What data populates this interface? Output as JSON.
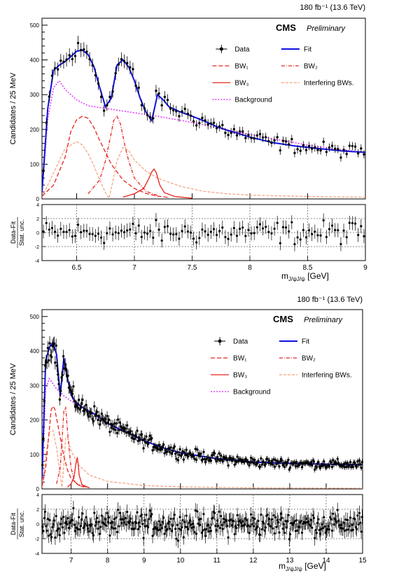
{
  "chart_data": [
    {
      "type": "line",
      "lumi_label": "180 fb⁻¹ (13.6 TeV)",
      "experiment": "CMS",
      "status": "Preliminary",
      "ylabel": "Candidates / 25 MeV",
      "xlabel": "m",
      "xlabel_sub": "J/ψJ/ψ",
      "xlabel_unit": " [GeV]",
      "ratio_ylabel_top": "Data-Fit",
      "ratio_ylabel_bottom": "Stat. unc.",
      "xlim": [
        6.2,
        9.0
      ],
      "ylim": [
        0,
        520
      ],
      "ratio_ylim": [
        -4,
        4
      ],
      "x_ticks": [
        "6.5",
        "7",
        "7.5",
        "8",
        "8.5",
        "9"
      ],
      "x_tick_values": [
        6.5,
        7.0,
        7.5,
        8.0,
        8.5,
        9.0
      ],
      "y_ticks": [
        "0",
        "100",
        "200",
        "300",
        "400",
        "500"
      ],
      "y_tick_values": [
        0,
        100,
        200,
        300,
        400,
        500
      ],
      "ratio_ticks": [
        "-4",
        "-2",
        "0",
        "2",
        "4"
      ],
      "ratio_tick_values": [
        -4,
        -2,
        0,
        2,
        4
      ],
      "ratio_dashed_lines": [
        6.5,
        7.0,
        7.5,
        8.0,
        8.5
      ],
      "legend": {
        "data": "Data",
        "fit": "Fit",
        "bw1": "BW₁",
        "bw2": "BW₂",
        "bw3": "BW₃",
        "interf": "Interfering BWs.",
        "background": "Background"
      },
      "colors": {
        "fit": "#1010e0",
        "bw": "#e8231e",
        "interf": "#f5a07a",
        "background": "#e040ff",
        "data": "#000000"
      },
      "series": [
        {
          "name": "Fit",
          "x": [
            6.2,
            6.25,
            6.3,
            6.35,
            6.4,
            6.45,
            6.5,
            6.55,
            6.6,
            6.65,
            6.7,
            6.75,
            6.8,
            6.85,
            6.9,
            6.95,
            7.0,
            7.05,
            7.1,
            7.15,
            7.2,
            7.25,
            7.3,
            7.4,
            7.5,
            7.6,
            7.7,
            7.8,
            7.9,
            8.0,
            8.2,
            8.4,
            8.6,
            8.8,
            9.0
          ],
          "y": [
            20,
            260,
            370,
            385,
            395,
            410,
            425,
            428,
            415,
            380,
            320,
            265,
            290,
            385,
            400,
            380,
            340,
            290,
            250,
            225,
            300,
            285,
            265,
            250,
            238,
            225,
            210,
            198,
            188,
            178,
            162,
            152,
            145,
            138,
            134
          ]
        },
        {
          "name": "BW₁",
          "x": [
            6.2,
            6.3,
            6.4,
            6.45,
            6.5,
            6.55,
            6.6,
            6.65,
            6.7,
            6.8,
            6.9,
            7.0,
            7.1,
            7.2,
            7.3
          ],
          "y": [
            8,
            40,
            120,
            195,
            228,
            238,
            232,
            205,
            168,
            100,
            55,
            30,
            16,
            8,
            4
          ]
        },
        {
          "name": "BW₂",
          "x": [
            6.6,
            6.7,
            6.75,
            6.8,
            6.82,
            6.85,
            6.88,
            6.92,
            6.95,
            7.0,
            7.1,
            7.2
          ],
          "y": [
            15,
            55,
            110,
            190,
            225,
            238,
            215,
            150,
            110,
            60,
            22,
            10
          ]
        },
        {
          "name": "BW₃",
          "x": [
            6.9,
            7.0,
            7.08,
            7.12,
            7.15,
            7.17,
            7.19,
            7.22,
            7.26,
            7.35,
            7.5
          ],
          "y": [
            5,
            15,
            30,
            55,
            78,
            86,
            75,
            40,
            18,
            7,
            2
          ]
        },
        {
          "name": "Interfering BWs.",
          "x": [
            6.2,
            6.3,
            6.4,
            6.5,
            6.55,
            6.6,
            6.65,
            6.7,
            6.75,
            6.78,
            6.8,
            6.85,
            6.9,
            6.95,
            7.0,
            7.1,
            7.2,
            7.4,
            7.6,
            7.8,
            8.0,
            8.5,
            9.0
          ],
          "y": [
            5,
            75,
            145,
            165,
            155,
            130,
            95,
            55,
            18,
            2,
            30,
            110,
            148,
            140,
            112,
            80,
            60,
            36,
            22,
            15,
            11,
            7,
            5
          ]
        },
        {
          "name": "Background",
          "x": [
            6.2,
            6.25,
            6.3,
            6.35,
            6.4,
            6.5,
            6.6,
            6.8,
            7.0,
            7.2,
            7.5,
            8.0,
            8.5,
            9.0
          ],
          "y": [
            18,
            230,
            320,
            340,
            315,
            285,
            268,
            258,
            248,
            238,
            220,
            185,
            155,
            133
          ]
        }
      ]
    },
    {
      "type": "line",
      "lumi_label": "180 fb⁻¹ (13.6 TeV)",
      "experiment": "CMS",
      "status": "Preliminary",
      "ylabel": "Candidates / 25 MeV",
      "xlabel": "m",
      "xlabel_sub": "J/ψJ/ψ",
      "xlabel_unit": " [GeV]",
      "ratio_ylabel_top": "Data-Fit",
      "ratio_ylabel_bottom": "Stat. unc.",
      "xlim": [
        6.2,
        15.0
      ],
      "ylim": [
        0,
        520
      ],
      "ratio_ylim": [
        -4,
        4
      ],
      "x_ticks": [
        "7",
        "8",
        "9",
        "10",
        "11",
        "12",
        "13",
        "14",
        "15"
      ],
      "x_tick_values": [
        7,
        8,
        9,
        10,
        11,
        12,
        13,
        14,
        15
      ],
      "y_ticks": [
        "0",
        "100",
        "200",
        "300",
        "400",
        "500"
      ],
      "y_tick_values": [
        0,
        100,
        200,
        300,
        400,
        500
      ],
      "ratio_ticks": [
        "-4",
        "-2",
        "0",
        "2",
        "4"
      ],
      "ratio_tick_values": [
        -4,
        -2,
        0,
        2,
        4
      ],
      "ratio_dashed_lines": [
        7,
        8,
        9,
        10,
        11,
        12,
        13,
        14
      ],
      "legend": {
        "data": "Data",
        "fit": "Fit",
        "bw1": "BW₁",
        "bw2": "BW₂",
        "bw3": "BW₃",
        "interf": "Interfering BWs.",
        "background": "Background"
      },
      "colors": {
        "fit": "#1010e0",
        "bw": "#e8231e",
        "interf": "#f5a07a",
        "background": "#e040ff",
        "data": "#000000"
      },
      "series": [
        {
          "name": "Fit",
          "x": [
            6.2,
            6.3,
            6.4,
            6.5,
            6.6,
            6.7,
            6.8,
            6.9,
            7.0,
            7.1,
            7.2,
            7.4,
            7.6,
            7.8,
            8.0,
            8.5,
            9.0,
            9.5,
            10,
            11,
            12,
            13,
            14,
            15
          ],
          "y": [
            30,
            370,
            410,
            425,
            390,
            270,
            380,
            320,
            275,
            255,
            245,
            230,
            220,
            205,
            190,
            165,
            140,
            120,
            105,
            88,
            78,
            74,
            72,
            70
          ]
        },
        {
          "name": "BW₁",
          "x": [
            6.2,
            6.3,
            6.4,
            6.45,
            6.5,
            6.55,
            6.6,
            6.7,
            6.8,
            6.9,
            7.0,
            7.2,
            7.5
          ],
          "y": [
            8,
            60,
            170,
            228,
            240,
            232,
            205,
            150,
            95,
            55,
            30,
            12,
            4
          ]
        },
        {
          "name": "BW₂",
          "x": [
            6.6,
            6.7,
            6.75,
            6.8,
            6.85,
            6.9,
            6.95,
            7.0,
            7.1,
            7.2,
            7.4
          ],
          "y": [
            15,
            60,
            140,
            225,
            238,
            170,
            110,
            60,
            22,
            10,
            4
          ]
        },
        {
          "name": "BW₃",
          "x": [
            6.9,
            7.0,
            7.08,
            7.12,
            7.15,
            7.17,
            7.19,
            7.22,
            7.3,
            7.5
          ],
          "y": [
            5,
            15,
            35,
            65,
            85,
            90,
            75,
            40,
            12,
            3
          ]
        },
        {
          "name": "Interfering BWs.",
          "x": [
            6.2,
            6.3,
            6.4,
            6.5,
            6.6,
            6.7,
            6.75,
            6.8,
            6.85,
            6.9,
            7.0,
            7.2,
            7.5,
            8.0,
            9.0,
            10,
            12,
            15
          ],
          "y": [
            5,
            90,
            165,
            170,
            120,
            40,
            5,
            70,
            148,
            150,
            110,
            70,
            40,
            22,
            10,
            6,
            3,
            2
          ]
        },
        {
          "name": "Background",
          "x": [
            6.2,
            6.3,
            6.4,
            6.6,
            6.8,
            7.0,
            7.5,
            8.0,
            8.5,
            9.0,
            9.5,
            10,
            11,
            12,
            13,
            14,
            15
          ],
          "y": [
            20,
            290,
            320,
            290,
            270,
            255,
            225,
            190,
            165,
            140,
            120,
            105,
            88,
            78,
            74,
            72,
            70
          ]
        }
      ]
    }
  ]
}
